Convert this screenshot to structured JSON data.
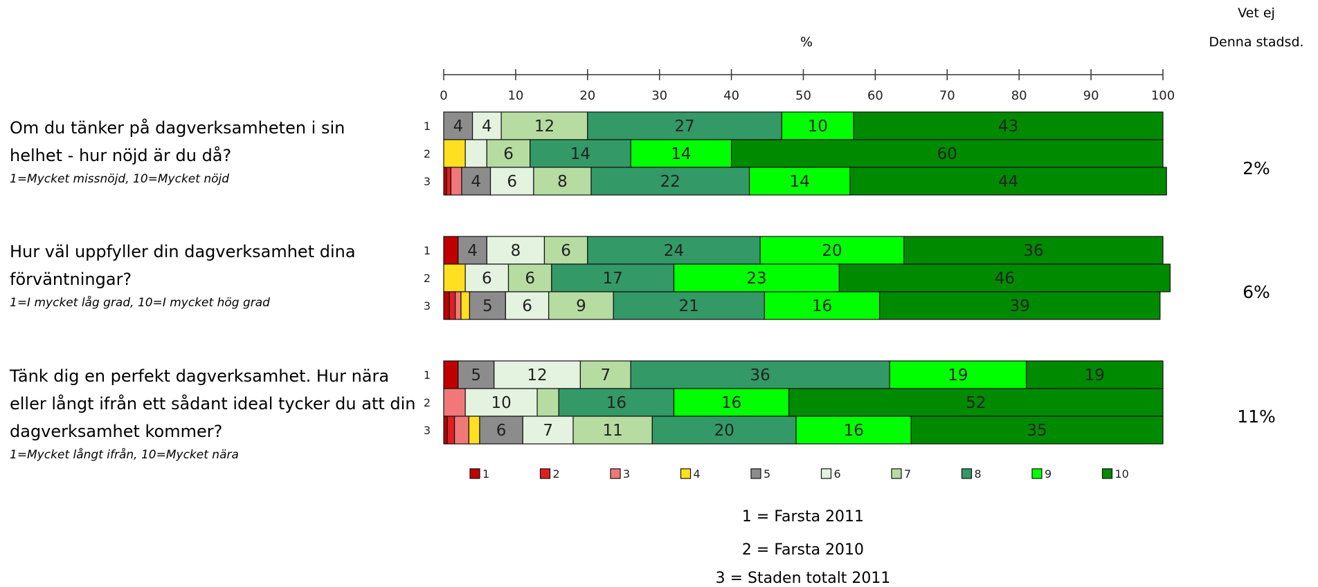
{
  "header": {
    "unit_label": "%",
    "vet_ej": "Vet ej",
    "denna_stadsd": "Denna stadsd."
  },
  "questions": [
    {
      "text": "Om du tänker på dagverksamheten i sin helhet - hur nöjd är du då?",
      "scale": "1=Mycket missnöjd, 10=Mycket nöjd",
      "vet_ej": "2%"
    },
    {
      "text": "Hur väl uppfyller din dagverksamhet dina förväntningar?",
      "scale": "1=I mycket låg grad, 10=I mycket hög grad",
      "vet_ej": "6%"
    },
    {
      "text": "Tänk dig en perfekt dagverksamhet. Hur nära eller långt ifrån ett sådant ideal tycker du att din dagverksamhet kommer?",
      "scale": "1=Mycket långt ifrån, 10=Mycket nära",
      "vet_ej": "11%"
    }
  ],
  "footnote": [
    "1 = Farsta 2011",
    "2 = Farsta 2010",
    "3 = Staden totalt 2011"
  ],
  "chart_data": {
    "type": "bar",
    "orientation": "horizontal",
    "stacked": true,
    "xlim": [
      0,
      100
    ],
    "xticks": [
      0,
      10,
      20,
      30,
      40,
      50,
      60,
      70,
      80,
      90,
      100
    ],
    "xlabel": "%",
    "legend": {
      "position": "bottom",
      "entries": [
        "1",
        "2",
        "3",
        "4",
        "5",
        "6",
        "7",
        "8",
        "9",
        "10"
      ]
    },
    "colors": [
      "#c00000",
      "#e02020",
      "#f07878",
      "#ffe020",
      "#8c8c8c",
      "#e4f2e0",
      "#b6dca2",
      "#339966",
      "#00ff00",
      "#008a00"
    ],
    "groups": [
      {
        "question": 1,
        "bars": [
          {
            "row": "1",
            "values": [
              0,
              0,
              0,
              0,
              4,
              4,
              12,
              27,
              10,
              43
            ]
          },
          {
            "row": "2",
            "values": [
              0,
              0,
              0,
              3,
              0,
              3,
              6,
              14,
              14,
              60
            ]
          },
          {
            "row": "3",
            "values": [
              0.4,
              0.6,
              1.5,
              0,
              4,
              6,
              8,
              22,
              14,
              44
            ]
          }
        ]
      },
      {
        "question": 2,
        "bars": [
          {
            "row": "1",
            "values": [
              2,
              0,
              0,
              0,
              4,
              8,
              6,
              24,
              20,
              36
            ]
          },
          {
            "row": "2",
            "values": [
              0,
              0,
              0,
              3,
              0,
              6,
              6,
              17,
              23,
              46
            ]
          },
          {
            "row": "3",
            "values": [
              0.8,
              0.8,
              0.8,
              1.2,
              5,
              6,
              9,
              21,
              16,
              39
            ]
          }
        ]
      },
      {
        "question": 3,
        "bars": [
          {
            "row": "1",
            "values": [
              2,
              0,
              0,
              0,
              5,
              12,
              7,
              36,
              19,
              19
            ]
          },
          {
            "row": "2",
            "values": [
              0,
              0,
              3,
              0,
              0,
              10,
              3,
              16,
              16,
              52
            ]
          },
          {
            "row": "3",
            "values": [
              0.5,
              1,
              2,
              1.5,
              6,
              7,
              11,
              20,
              16,
              35
            ]
          }
        ]
      }
    ]
  }
}
